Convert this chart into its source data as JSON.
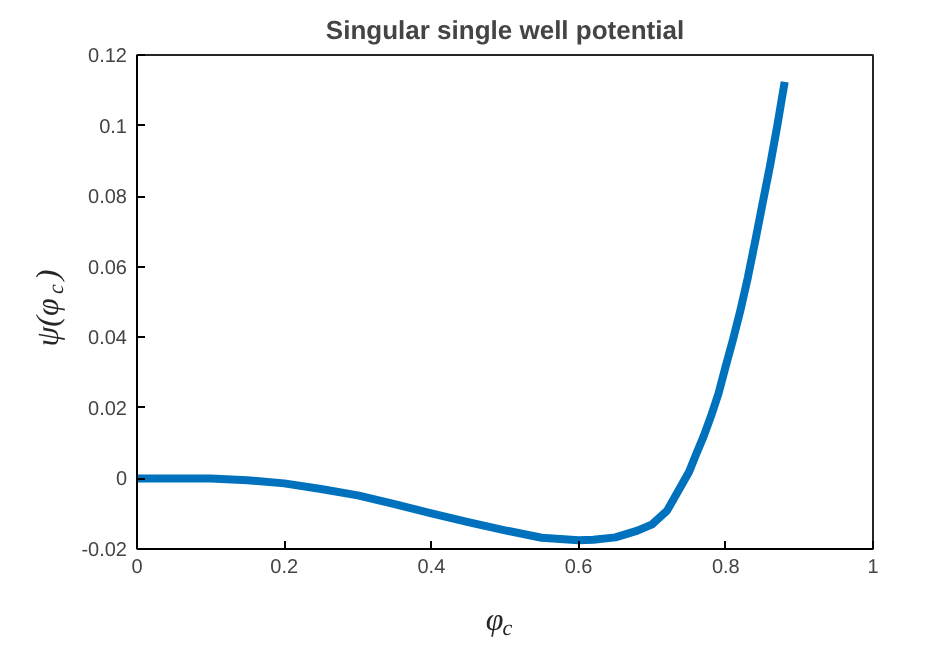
{
  "chart_data": {
    "type": "line",
    "title": "Singular single well potential",
    "xlabel": "φ$_{c}$",
    "ylabel": "ψ(φ$_{c}$)",
    "x": [
      0,
      0.1,
      0.15,
      0.2,
      0.25,
      0.3,
      0.35,
      0.4,
      0.45,
      0.5,
      0.55,
      0.6,
      0.62,
      0.65,
      0.68,
      0.7,
      0.72,
      0.75,
      0.76,
      0.77,
      0.78,
      0.79,
      0.8,
      0.81,
      0.82,
      0.83,
      0.84,
      0.85,
      0.86,
      0.87,
      0.88
    ],
    "series": [
      {
        "color": "#0072bd",
        "values": [
          0,
          0,
          -0.0005,
          -0.0014,
          -0.003,
          -0.0048,
          -0.0073,
          -0.0099,
          -0.0124,
          -0.0147,
          -0.0168,
          -0.0175,
          -0.0174,
          -0.0167,
          -0.0148,
          -0.013,
          -0.0092,
          0.0018,
          0.007,
          0.012,
          0.0177,
          0.024,
          0.0319,
          0.0395,
          0.0478,
          0.057,
          0.0673,
          0.078,
          0.0885,
          0.1,
          0.1124
        ]
      }
    ],
    "xlim": [
      0,
      1
    ],
    "ylim": [
      -0.02,
      0.12
    ],
    "xticks": [
      0,
      0.2,
      0.4,
      0.6,
      0.8,
      1
    ],
    "yticks": [
      -0.02,
      0,
      0.02,
      0.04,
      0.06,
      0.08,
      0.1,
      0.12
    ],
    "grid": false,
    "line_style": "solid"
  }
}
